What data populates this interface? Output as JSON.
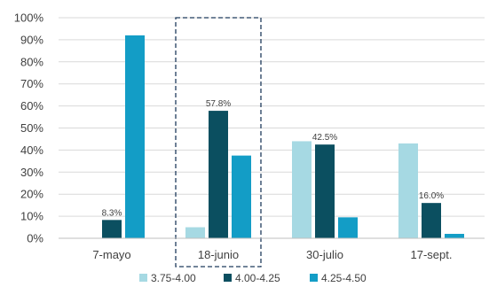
{
  "chart_data": {
    "type": "bar",
    "title": "",
    "xlabel": "",
    "ylabel": "",
    "ylim": [
      0,
      100
    ],
    "y_ticks": [
      0,
      10,
      20,
      30,
      40,
      50,
      60,
      70,
      80,
      90,
      100
    ],
    "y_tick_labels": [
      "0%",
      "10%",
      "20%",
      "30%",
      "40%",
      "50%",
      "60%",
      "70%",
      "80%",
      "90%",
      "100%"
    ],
    "grid": true,
    "legend_position": "bottom",
    "categories": [
      "7-mayo",
      "18-junio",
      "30-julio",
      "17-sept."
    ],
    "highlighted_category": "18-junio",
    "series": [
      {
        "name": "3.75-4.00",
        "color": "#a6d9e3",
        "values": [
          0,
          5,
          44,
          43
        ],
        "labels": [
          "",
          "",
          "",
          ""
        ]
      },
      {
        "name": "4.00-4.25",
        "color": "#0b4f60",
        "values": [
          8.3,
          57.8,
          42.5,
          16.0
        ],
        "labels": [
          "8.3%",
          "57.8%",
          "42.5%",
          "16.0%"
        ]
      },
      {
        "name": "4.25-4.50",
        "color": "#139dc6",
        "values": [
          92,
          37.5,
          9.5,
          2
        ],
        "labels": [
          "",
          "",
          "",
          ""
        ]
      }
    ]
  }
}
